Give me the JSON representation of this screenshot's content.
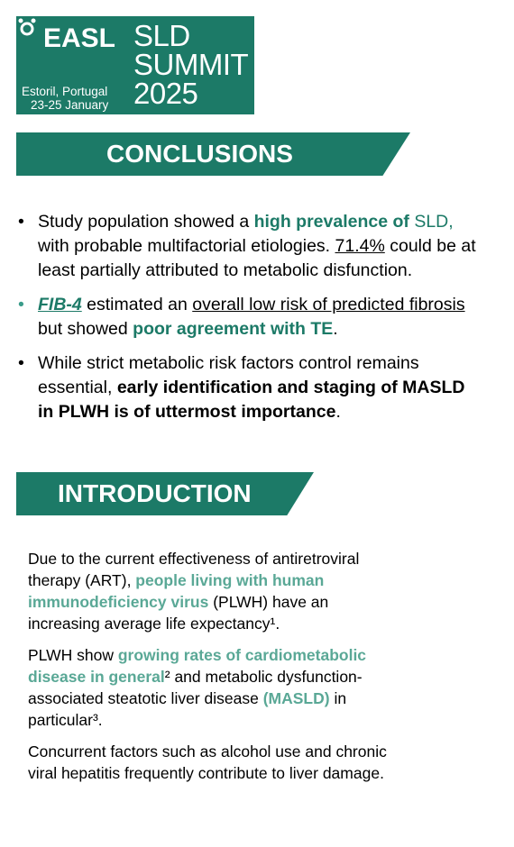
{
  "logo": {
    "brand": "EASL",
    "event_line1": "SLD",
    "event_line2": "SUMMIT",
    "event_line3": "2025",
    "location": "Estoril, Portugal",
    "dates": "23-25 January"
  },
  "conclusions": {
    "heading": "CONCLUSIONS",
    "bullets": [
      [
        "Study population showed a ",
        "high prevalence of ",
        "SLD,",
        " with probable multifactorial etiologies. ",
        "71.4%",
        " could be at least partially attributed to metabolic disfunction."
      ],
      [
        "FIB-4",
        " estimated an ",
        "overall low risk of predicted fibrosis ",
        "but showed ",
        "poor agreement with TE",
        "."
      ],
      [
        "While strict metabolic risk factors control remains essential, ",
        "early identification and staging of MASLD in PLWH is of uttermost importance",
        "."
      ]
    ]
  },
  "introduction": {
    "heading": "INTRODUCTION",
    "paragraphs": [
      [
        "Due to the current effectiveness of antiretroviral therapy (ART), ",
        "people living with human immunodeficiency virus",
        " (PLWH) have an increasing average life expectancy¹."
      ],
      [
        "PLWH show ",
        "growing rates of cardiometabolic disease in general",
        "² and metabolic dysfunction-associated steatotic liver disease ",
        "(MASLD)",
        " in particular³."
      ],
      [
        "Concurrent factors such as alcohol use and chronic viral hepatitis frequently contribute to liver damage."
      ]
    ]
  }
}
